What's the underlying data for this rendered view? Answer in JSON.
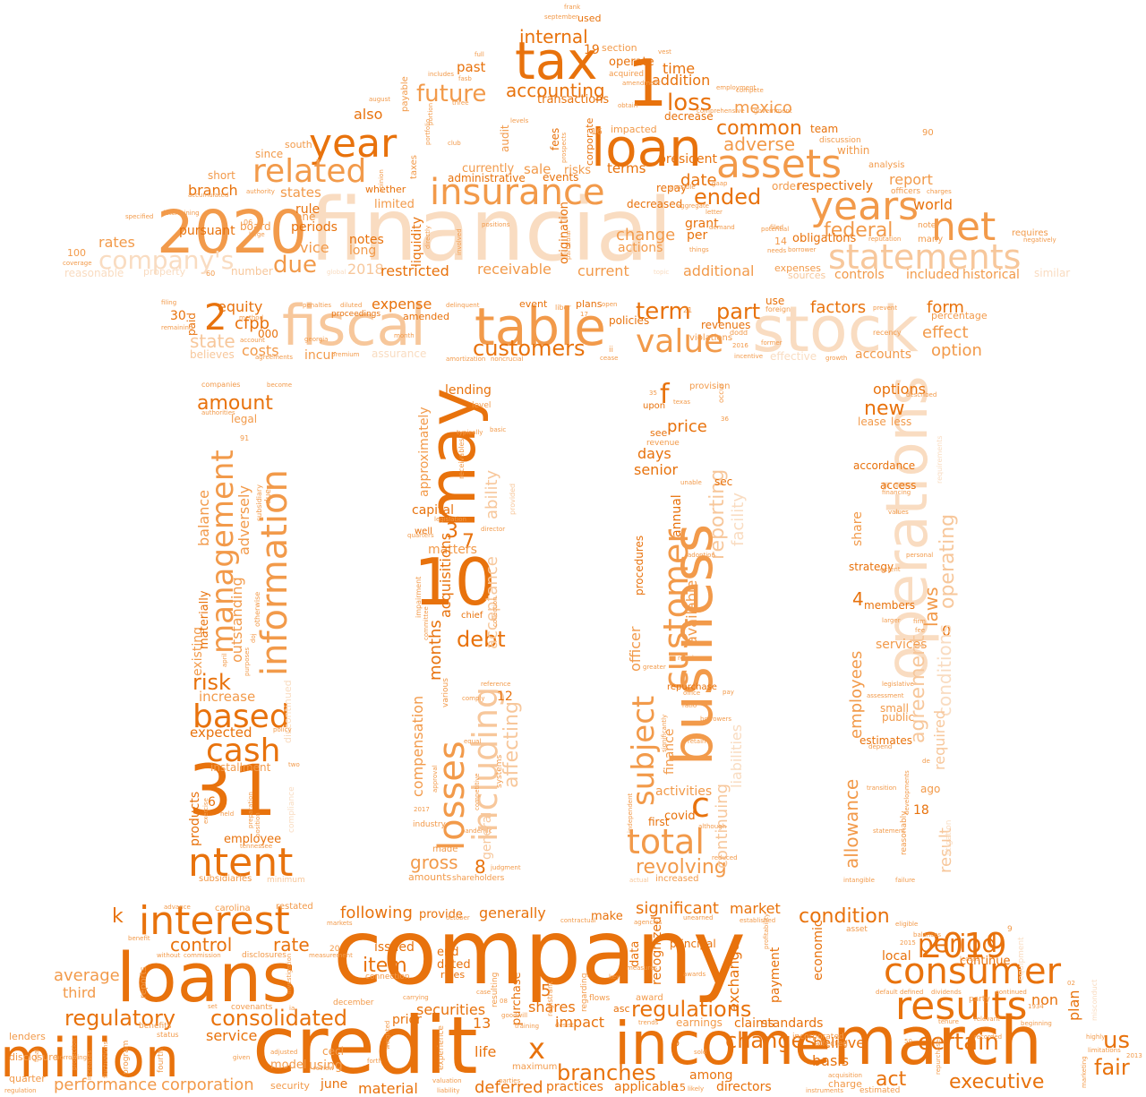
{
  "colors": {
    "dark": "#e8720c",
    "mid": "#f29a4a",
    "light": "#f7c79b",
    "pale": "#f9dcc1",
    "faint": "#fbe9da"
  },
  "shape": "bank-building",
  "words": {
    "company": "company",
    "financial": "financial",
    "credit": "credit",
    "loans": "loans",
    "march": "march",
    "income": "income",
    "stock": "stock",
    "operations": "operations",
    "2021": "2021",
    "fiscal": "fiscal",
    "table": "table",
    "loan": "loan",
    "tax": "tax",
    "n2020": "2020",
    "million": "million",
    "business": "business",
    "n31": "31",
    "n10": "10",
    "may": "may",
    "assets": "assets",
    "statements": "statements",
    "interest": "interest",
    "results": "results",
    "consumer": "consumer",
    "insurance": "insurance",
    "year": "year",
    "years": "years",
    "net": "net",
    "n2019": "2019",
    "value": "value",
    "related": "related",
    "management": "management",
    "information": "information",
    "customer": "customer",
    "losses": "losses",
    "including": "including",
    "total": "total",
    "based": "based",
    "cash": "cash",
    "ntent": "ntent",
    "n1": "1",
    "n2": "2",
    "regulations": "regulations",
    "changes": "changes",
    "certain": "certain",
    "consolidated": "consolidated",
    "regulatory": "regulatory",
    "customers": "customers",
    "future": "future",
    "accounting": "accounting",
    "internal": "internal",
    "loss": "loss",
    "common": "common",
    "adverse": "adverse",
    "ended": "ended",
    "federal": "federal",
    "due": "due",
    "companys": "company's",
    "period": "period",
    "condition": "condition",
    "term": "term",
    "part": "part",
    "revolving": "revolving",
    "subject": "subject",
    "debt": "debt",
    "reporting": "reporting",
    "agreement": "agreement",
    "allowance": "allowance",
    "laws": "laws",
    "new": "new",
    "risk": "risk",
    "amount": "amount",
    "executive": "executive",
    "fair": "fair",
    "us": "us",
    "act": "act",
    "branches": "branches",
    "control": "control",
    "rate": "rate",
    "item": "item",
    "following": "following",
    "generally": "generally",
    "significant": "significant",
    "market": "market",
    "equity": "equity",
    "cfpb": "cfpb",
    "state": "state",
    "costs": "costs",
    "expense": "expense",
    "factors": "factors",
    "form": "form",
    "effect": "effect",
    "option": "option",
    "receivable": "receivable",
    "restricted": "restricted",
    "current": "current",
    "additional": "additional",
    "date": "date",
    "change": "change",
    "report": "report",
    "world": "world",
    "mexico": "mexico",
    "addition": "addition",
    "time": "time",
    "branch": "branch",
    "states": "states",
    "rule": "rule",
    "rates": "rates",
    "also": "also",
    "vice": "vice",
    "notes": "notes",
    "terms": "terms",
    "president": "president",
    "k": "k",
    "x": "x",
    "f": "f",
    "c": "c",
    "n3": "3",
    "n7": "7",
    "n5": "5",
    "n8": "8",
    "n4": "4",
    "n6": "6",
    "n0": "0",
    "n18": "18",
    "n13": "13",
    "n19": "19",
    "n12": "12",
    "approximately": "approximately",
    "compensation": "compensation",
    "months": "months",
    "capital": "capital",
    "lending": "lending",
    "acquisitions": "acquisitions",
    "matters": "matters",
    "ability": "ability",
    "acceptance": "acceptance",
    "affecting": "affecting",
    "general": "general",
    "gross": "gross",
    "price": "price",
    "days": "days",
    "senior": "senior",
    "annual": "annual",
    "available": "available",
    "finance": "finance",
    "officer": "officer",
    "procedures": "procedures",
    "activities": "activities",
    "covid": "covid",
    "facility": "facility",
    "continuing": "continuing",
    "options": "options",
    "operating": "operating",
    "conditions": "conditions",
    "lease": "lease",
    "less": "less",
    "accordance": "accordance",
    "access": "access",
    "share": "share",
    "strategy": "strategy",
    "members": "members",
    "services": "services",
    "employees": "employees",
    "required": "required",
    "result": "result",
    "small": "small",
    "public": "public",
    "estimates": "estimates",
    "ago": "ago",
    "balance": "balance",
    "adversely": "adversely",
    "outstanding": "outstanding",
    "existing": "existing",
    "materially": "materially",
    "increase": "increase",
    "expected": "expected",
    "products": "products",
    "employee": "employee",
    "legal": "legal",
    "installment": "installment",
    "subsidiaries": "subsidiaries",
    "average": "average",
    "third": "third",
    "service": "service",
    "performance": "performance",
    "corporation": "corporation",
    "securities": "securities",
    "shares": "shares",
    "impact": "impact",
    "deferred": "deferred",
    "material": "material",
    "exchange": "exchange",
    "payment": "payment",
    "economic": "economic",
    "basis": "basis",
    "claims": "claims",
    "standards": "standards",
    "believe": "believe",
    "plan": "plan",
    "non": "non",
    "local": "local",
    "continue": "continue",
    "purchase": "purchase",
    "life": "life",
    "model": "model",
    "using": "using",
    "june": "june",
    "cecl": "cecl",
    "issued": "issued",
    "end": "end",
    "dated": "dated",
    "rules": "rules",
    "provide": "provide",
    "make": "make",
    "data": "data",
    "recognized": "recognized",
    "among": "among",
    "directors": "directors",
    "earnings": "earnings",
    "principal": "principal",
    "applicable": "applicable",
    "practices": "practices",
    "maximum": "maximum",
    "prior": "prior",
    "accounts": "accounts",
    "percentage": "percentage",
    "historical": "historical",
    "included": "included",
    "controls": "controls",
    "expenses": "expenses",
    "sources": "sources",
    "actions": "actions",
    "obligations": "obligations",
    "respectively": "respectively",
    "order": "order",
    "within": "within",
    "team": "team",
    "discussion": "discussion",
    "analysis": "analysis",
    "officers": "officers",
    "requires": "requires",
    "many": "many",
    "note": "note",
    "n90": "90",
    "n14": "14",
    "long": "long",
    "periods": "periods",
    "one": "one",
    "pursuant": "pursuant",
    "n100": "100",
    "n2018": "2018",
    "number": "number",
    "reasonable": "reasonable",
    "property": "property",
    "coverage": "coverage",
    "board": "board",
    "short": "short",
    "limited": "limited",
    "whether": "whether",
    "since": "since",
    "south": "south",
    "payable": "payable",
    "taxes": "taxes",
    "liquidity": "liquidity",
    "administrative": "administrative",
    "currently": "currently",
    "sale": "sale",
    "risks": "risks",
    "events": "events",
    "transactions": "transactions",
    "origination": "origination",
    "decreased": "decreased",
    "decrease": "decrease",
    "repay": "repay",
    "possible": "possible",
    "grant": "grant",
    "per": "per",
    "past": "past",
    "operate": "operate",
    "section": "section",
    "used": "used",
    "acquired": "acquired",
    "fees": "fees",
    "corporate": "corporate",
    "audit": "audit",
    "impacted": "impacted",
    "paid": "paid",
    "n30": "30",
    "n000": "000",
    "believes": "believes",
    "incur": "incur",
    "assurance": "assurance",
    "amended": "amended",
    "event": "event",
    "plans": "plans",
    "policies": "policies",
    "revenues": "revenues",
    "violations": "violations",
    "use": "use",
    "foreign": "foreign",
    "effective": "effective",
    "recency": "recency",
    "prevent": "prevent",
    "uncertain": "uncertain",
    "proceedings": "proceedings",
    "georgia": "georgia",
    "month": "month",
    "delinquent": "delinquent",
    "libor": "libor",
    "n21": "21",
    "n2016": "2016",
    "dodd": "dodd",
    "provision": "provision",
    "upon": "upon",
    "see": "see",
    "revenue": "revenue",
    "texas": "texas",
    "n35": "35",
    "n36": "36",
    "sec": "sec",
    "adoption": "adoption",
    "unable": "unable",
    "repurchase": "repurchase",
    "require": "require",
    "greater": "greater",
    "office": "office",
    "pay": "pay",
    "borrowers": "borrowers",
    "ratio": "ratio",
    "retain": "retain",
    "increased": "increased",
    "independent": "independent",
    "although": "although",
    "first": "first",
    "reduced": "reduced",
    "liabilities": "liabilities",
    "occur": "occur",
    "level": "level",
    "basic": "basic",
    "typically": "typically",
    "receivables": "receivables",
    "legislation": "legislation",
    "director": "director",
    "well": "well",
    "quarters": "quarters",
    "chief": "chief",
    "impairment": "impairment",
    "committee": "committee",
    "various": "various",
    "reference": "reference",
    "comply": "comply",
    "equal": "equal",
    "approval": "approval",
    "pandemic": "pandemic",
    "industry": "industry",
    "made": "made",
    "amounts": "amounts",
    "shareholders": "shareholders",
    "judgment": "judgment",
    "systems": "systems",
    "competitive": "competitive",
    "n2017": "2017",
    "companies": "companies",
    "become": "become",
    "authorities": "authorities",
    "n91": "91",
    "subsidiary": "subsidiary",
    "due2": "due",
    "otherwise": "otherwise",
    "discontinued": "discontinued",
    "doj": "doj",
    "april": "april",
    "purposes": "purposes",
    "policy": "policy",
    "two": "two",
    "preparation": "preparation",
    "position": "position",
    "held": "held",
    "exercise": "exercise",
    "tennessee": "tennessee",
    "minimum": "minimum",
    "compliance": "compliance",
    "described": "described",
    "requirements": "requirements",
    "financing": "financing",
    "values": "values",
    "personal": "personal",
    "extent": "extent",
    "larger": "larger",
    "firm": "firm",
    "fee": "fee",
    "legislative": "legislative",
    "assessment": "assessment",
    "depend": "depend",
    "transition": "transition",
    "statement": "statement",
    "reasonably": "reasonably",
    "developments": "developments",
    "litigation": "litigation",
    "intangible": "intangible",
    "failure": "failure",
    "advance": "advance",
    "carolina": "carolina",
    "restated": "restated",
    "markets": "markets",
    "benefit": "benefit",
    "disclosures": "disclosures",
    "commission": "commission",
    "without": "without",
    "investigation": "investigation",
    "covenants": "covenants",
    "december": "december",
    "connection": "connection",
    "october": "october",
    "contractual": "contractual",
    "agencies": "agencies",
    "unearned": "unearned",
    "established": "established",
    "regarding": "regarding",
    "resulting": "resulting",
    "awards": "awards",
    "award": "award",
    "asc": "asc",
    "trends": "trends",
    "registrant": "registrant",
    "training": "training",
    "goodwill": "goodwill",
    "desist": "desist",
    "flows": "flows",
    "key": "key",
    "measures": "measures",
    "asset": "asset",
    "eligible": "eligible",
    "balances": "balances",
    "leases": "leases",
    "party": "party",
    "beginning": "beginning",
    "tenure": "tenure",
    "relevant": "relevant",
    "recorded": "recorded",
    "highly": "highly",
    "limitations": "limitations",
    "n2013": "2013",
    "lenders": "lenders",
    "disclosure": "disclosure",
    "quarter": "quarter",
    "regulation": "regulation",
    "program": "program",
    "fourth": "fourth",
    "increases": "increases",
    "fluctuations": "fluctuations",
    "benefits": "benefits",
    "status": "status",
    "reports": "reports",
    "adjusted": "adjusted",
    "security": "security",
    "review": "review",
    "parties": "parties",
    "valuation": "valuation",
    "liability": "liability",
    "experience": "experience",
    "incorporated": "incorporated",
    "affected": "affected",
    "charge": "charge",
    "likely": "likely",
    "acquisition": "acquisition",
    "estimated": "estimated",
    "instruments": "instruments",
    "defined": "defined",
    "default": "default",
    "dividends": "dividends",
    "continued": "continued",
    "misconduct": "misconduct",
    "marketing": "marketing",
    "frank": "frank",
    "september": "september",
    "vest": "vest",
    "full": "full",
    "fasb": "fasb",
    "includes": "includes",
    "three": "three",
    "club": "club",
    "portfolio": "portfolio",
    "portion": "portion",
    "august": "august",
    "accumulated": "accumulated",
    "opinion": "opinion",
    "determining": "determining",
    "specified": "specified",
    "large": "large",
    "n06": "06",
    "n60": "60",
    "global": "global",
    "topic": "topic",
    "things": "things",
    "comprehensive": "comprehensive",
    "employment": "employment",
    "government": "government",
    "compete": "compete",
    "obtain": "obtain",
    "amendment": "amendment",
    "levels": "levels",
    "particular": "particular",
    "prospects": "prospects",
    "involved": "involved",
    "directly": "directly",
    "positions": "positions",
    "potential": "potential",
    "filed": "filed",
    "borrower": "borrower",
    "demand": "demand",
    "letter": "letter",
    "negatively": "negatively",
    "charges": "charges",
    "reputation": "reputation",
    "gaap": "gaap",
    "aggregate": "aggregate",
    "similar": "similar",
    "filing": "filing",
    "remaining": "remaining",
    "method": "method",
    "account": "account",
    "diluted": "diluted",
    "penalties": "penalties",
    "agreements": "agreements",
    "premium": "premium",
    "amortization": "amortization",
    "noncrucial": "noncrucial",
    "growth": "growth",
    "incentive": "incentive",
    "technology": "technology",
    "n17": "17",
    "n11": "11",
    "n16": "16",
    "authority": "authority",
    "law": "law",
    "needs": "needs",
    "former": "former",
    "n15": "15",
    "n20": "20",
    "n9": "9",
    "n02": "02",
    "n1934": "1934",
    "n50": "50",
    "n2015": "2015",
    "caption1": "actual",
    "sold": "sold",
    "equipment": "equipment",
    "ia": "ia",
    "de": "de",
    "n08": "08",
    "open": "open",
    "however": "however",
    "collection": "collection",
    "provided": "provided",
    "reserve": "reserve",
    "effectiveness": "effectiveness",
    "gains": "gains",
    "b": "b",
    "v": "v",
    "ii": "ii",
    "case": "case",
    "given": "given",
    "forth": "forth",
    "protection": "protection",
    "final": "final",
    "borrowing": "borrowing",
    "set": "set",
    "measurement": "measurement",
    "unable2": "unable",
    "cease": "cease",
    "profitability": "profitability",
    "compensation2": "compensation",
    "repurchases": "repurchases",
    "carrying": "carrying",
    "weighted": "weighted",
    "whether2": "whether",
    "tenure2": "tenure",
    "significantly": "significantly",
    "reasonably2": "reasonably",
    "caption2": "funding"
  }
}
